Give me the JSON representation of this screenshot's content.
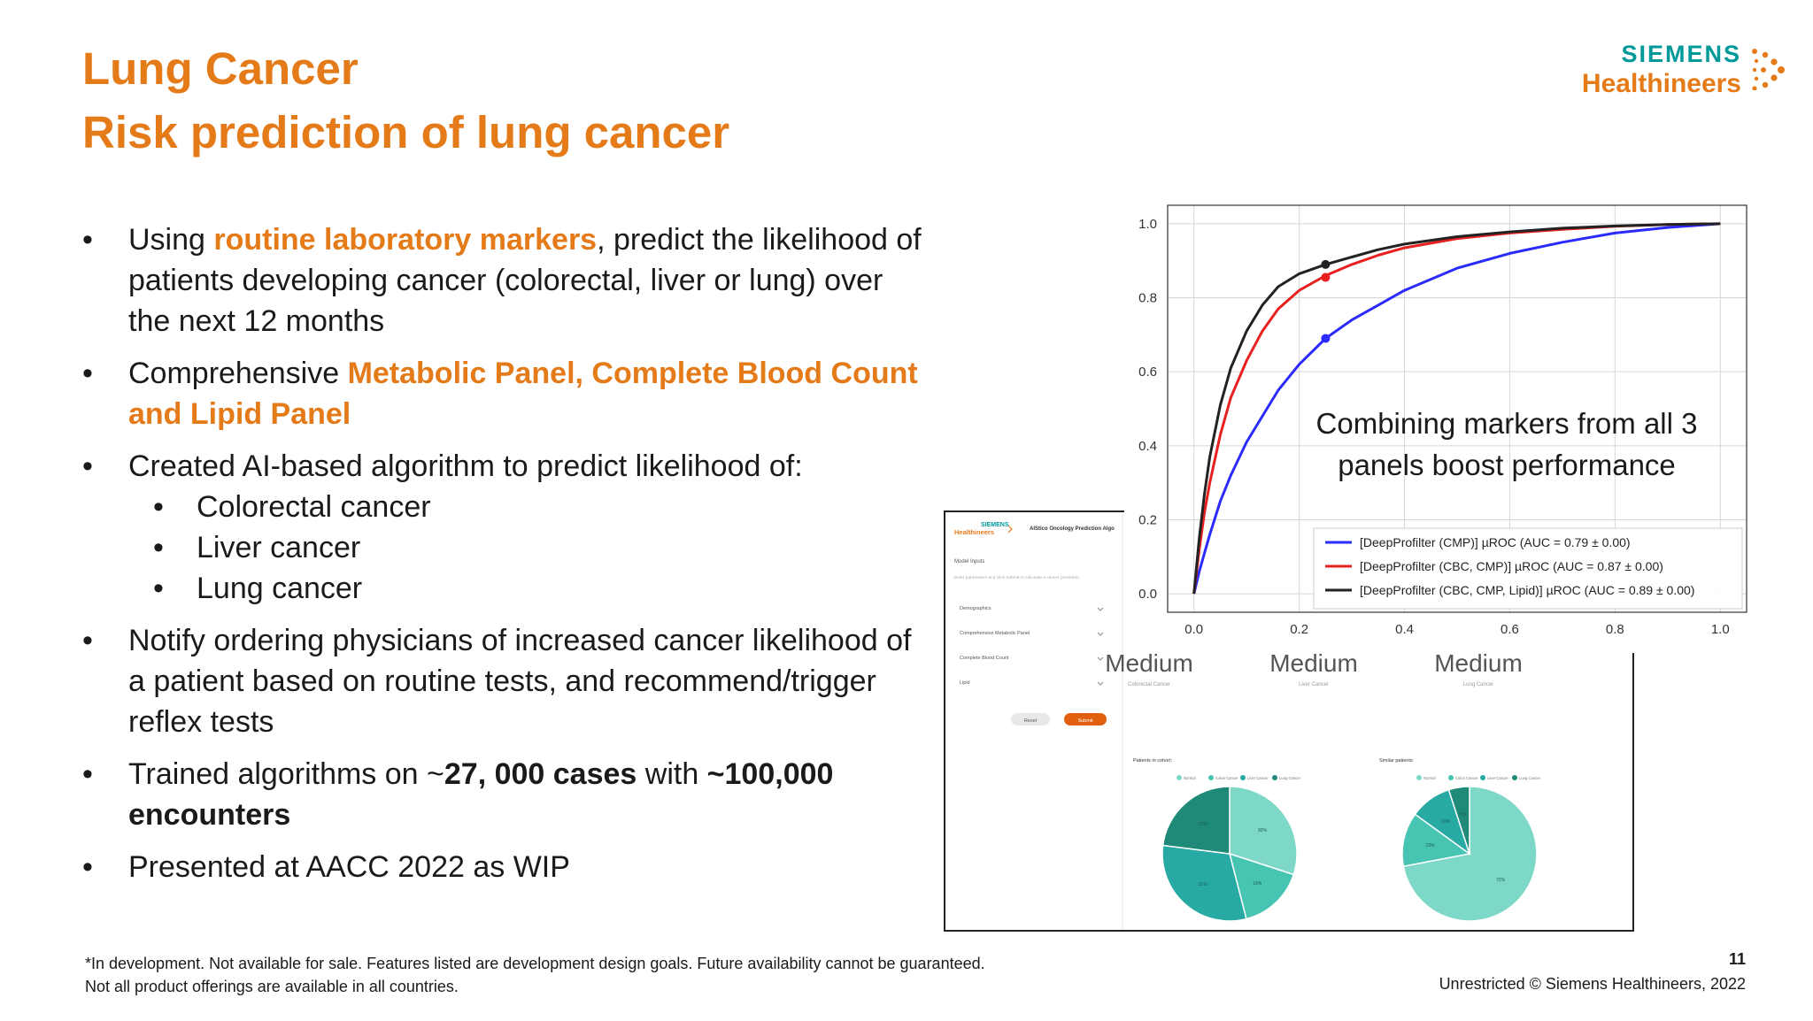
{
  "header": {
    "title_line1": "Lung Cancer",
    "title_line2": "Risk prediction of lung cancer"
  },
  "logo": {
    "line1": "SIEMENS",
    "line2": "Healthineers"
  },
  "bullets": {
    "b1": {
      "pre": "Using ",
      "highlight": "routine laboratory markers",
      "post": ", predict the likelihood of patients developing cancer (colorectal, liver or lung) over the next 12 months"
    },
    "b2": {
      "pre": "Comprehensive ",
      "highlight": "Metabolic Panel, Complete Blood Count and Lipid Panel"
    },
    "b3": {
      "text": "Created AI-based algorithm to predict likelihood of:",
      "subitems": [
        "Colorectal cancer",
        "Liver cancer",
        "Lung cancer"
      ]
    },
    "b4": {
      "text": "Notify ordering physicians of increased cancer likelihood of a patient based on routine tests, and recommend/trigger reflex tests"
    },
    "b5": {
      "pre": "Trained algorithms on ~",
      "bold1": "27, 000 cases",
      "mid": " with ",
      "bold2": "~100,000 encounters"
    },
    "b6": {
      "text": "Presented at AACC 2022 as WIP"
    }
  },
  "app_screenshot": {
    "logo_line1": "SIEMENS",
    "logo_line2": "Healthineers",
    "app_title": "AIStico Oncology Prediction Algo",
    "model_inputs": "Model Inputs",
    "instructions": "Enter parameters and click Submit to calculate a cancer prediction",
    "sections": [
      "Demographics",
      "Comprehensive Metabolic Panel",
      "Complete Blood Count",
      "Lipid"
    ],
    "reset_label": "Reset",
    "submit_label": "Submit",
    "results": [
      {
        "level": "Medium",
        "label": "Colorectal Cancer"
      },
      {
        "level": "Medium",
        "label": "Liver Cancer"
      },
      {
        "level": "Medium",
        "label": "Lung Cancer"
      }
    ],
    "pie1_title": "Patients in cohort:",
    "pie2_title": "Similar patients:",
    "pie_legend": [
      "Normal",
      "Colon Cancer",
      "Liver Cancer",
      "Lung Cancer"
    ],
    "pie_colors": [
      "#7dd8c8",
      "#47c4b2",
      "#27a9a4",
      "#1f8a78"
    ],
    "pie1_values": [
      30,
      16,
      31,
      23
    ],
    "pie2_values": [
      72,
      13,
      10,
      5
    ]
  },
  "chart_data": {
    "type": "line",
    "title": "",
    "xlabel": "",
    "ylabel": "",
    "xlim": [
      0.0,
      1.0
    ],
    "ylim": [
      0.0,
      1.0
    ],
    "xticks": [
      "0.0",
      "0.2",
      "0.4",
      "0.6",
      "0.8",
      "1.0"
    ],
    "yticks": [
      "0.0",
      "0.2",
      "0.4",
      "0.6",
      "0.8",
      "1.0"
    ],
    "grid": true,
    "annotation": "Combining markers from all 3 panels boost performance",
    "legend_position": "lower-right",
    "series": [
      {
        "name": "[DeepProfilter (CMP)] µROC (AUC = 0.79 ± 0.00)",
        "color": "#2b2bff",
        "x": [
          0,
          0.01,
          0.02,
          0.03,
          0.05,
          0.07,
          0.1,
          0.13,
          0.16,
          0.2,
          0.25,
          0.3,
          0.35,
          0.4,
          0.5,
          0.6,
          0.7,
          0.8,
          0.9,
          1.0
        ],
        "y": [
          0,
          0.06,
          0.11,
          0.16,
          0.25,
          0.32,
          0.41,
          0.48,
          0.55,
          0.62,
          0.69,
          0.74,
          0.78,
          0.82,
          0.88,
          0.92,
          0.95,
          0.975,
          0.99,
          1.0
        ],
        "marker": [
          0.25,
          0.69
        ]
      },
      {
        "name": "[DeepProfilter (CBC, CMP)] µROC (AUC = 0.87 ± 0.00)",
        "color": "#e82020",
        "x": [
          0,
          0.01,
          0.02,
          0.03,
          0.05,
          0.07,
          0.1,
          0.13,
          0.16,
          0.2,
          0.25,
          0.3,
          0.35,
          0.4,
          0.5,
          0.6,
          0.7,
          0.8,
          0.9,
          1.0
        ],
        "y": [
          0,
          0.12,
          0.22,
          0.3,
          0.43,
          0.53,
          0.63,
          0.71,
          0.77,
          0.82,
          0.86,
          0.89,
          0.915,
          0.935,
          0.96,
          0.975,
          0.985,
          0.993,
          0.998,
          1.0
        ],
        "marker": [
          0.25,
          0.855
        ]
      },
      {
        "name": "[DeepProfilter (CBC, CMP, Lipid)] µROC (AUC = 0.89 ± 0.00)",
        "color": "#222222",
        "x": [
          0,
          0.01,
          0.02,
          0.03,
          0.05,
          0.07,
          0.1,
          0.13,
          0.16,
          0.2,
          0.25,
          0.3,
          0.35,
          0.4,
          0.5,
          0.6,
          0.7,
          0.8,
          0.9,
          1.0
        ],
        "y": [
          0,
          0.15,
          0.27,
          0.37,
          0.51,
          0.61,
          0.71,
          0.78,
          0.83,
          0.865,
          0.89,
          0.91,
          0.93,
          0.945,
          0.965,
          0.978,
          0.988,
          0.994,
          0.998,
          1.0
        ],
        "marker": [
          0.25,
          0.89
        ]
      }
    ]
  },
  "footer": {
    "disclaimer_line1": "*In development. Not available for sale. Features listed are development design goals. Future availability cannot be guaranteed.",
    "disclaimer_line2": "Not all product offerings are available in all countries.",
    "page_number": "11",
    "copyright": "Unrestricted © Siemens Healthineers, 2022"
  }
}
